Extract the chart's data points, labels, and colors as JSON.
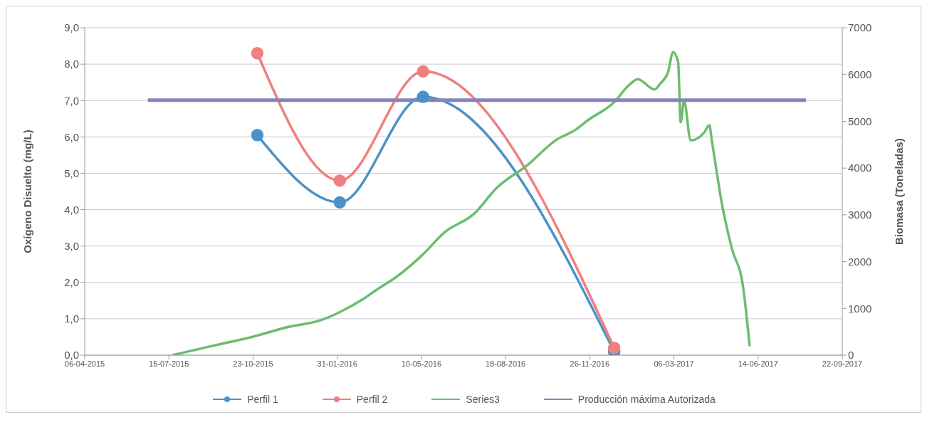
{
  "chart_data": {
    "type": "line",
    "ylabel": "Oxígeno Disuelto (mg/L)",
    "y2label": "Biomasa (Toneladas)",
    "xlim": [
      "2015-04-06",
      "2017-09-22"
    ],
    "xticks": [
      {
        "value": "2015-04-06",
        "label": "06-04-2015"
      },
      {
        "value": "2015-07-15",
        "label": "15-07-2015"
      },
      {
        "value": "2015-10-23",
        "label": "23-10-2015"
      },
      {
        "value": "2016-01-31",
        "label": "31-01-2016"
      },
      {
        "value": "2016-05-10",
        "label": "10-05-2016"
      },
      {
        "value": "2016-08-18",
        "label": "18-08-2016"
      },
      {
        "value": "2016-11-26",
        "label": "26-11-2016"
      },
      {
        "value": "2017-03-06",
        "label": "06-03-2017"
      },
      {
        "value": "2017-06-14",
        "label": "14-06-2017"
      },
      {
        "value": "2017-09-22",
        "label": "22-09-2017"
      }
    ],
    "ylim": [
      0,
      9
    ],
    "yticks": [
      {
        "value": 0,
        "label": "0,0"
      },
      {
        "value": 1,
        "label": "1,0"
      },
      {
        "value": 2,
        "label": "2,0"
      },
      {
        "value": 3,
        "label": "3,0"
      },
      {
        "value": 4,
        "label": "4,0"
      },
      {
        "value": 5,
        "label": "5,0"
      },
      {
        "value": 6,
        "label": "6,0"
      },
      {
        "value": 7,
        "label": "7,0"
      },
      {
        "value": 8,
        "label": "8,0"
      },
      {
        "value": 9,
        "label": "9,0"
      }
    ],
    "y2lim": [
      0,
      7000
    ],
    "y2ticks": [
      0,
      1000,
      2000,
      3000,
      4000,
      5000,
      6000,
      7000
    ],
    "grid": "y",
    "legend": "bottom",
    "series": [
      {
        "name": "Perfil 1",
        "color": "#4a92c9",
        "marker": "circle",
        "x": [
          "2015-10-28",
          "2016-02-03",
          "2016-05-12",
          "2016-12-25"
        ],
        "values": [
          6.05,
          4.2,
          7.1,
          0.1
        ]
      },
      {
        "name": "Perfil 2",
        "color": "#ef8080",
        "marker": "circle",
        "x": [
          "2015-10-28",
          "2016-02-03",
          "2016-05-12",
          "2016-12-25"
        ],
        "values": [
          8.3,
          4.8,
          7.8,
          0.2
        ]
      },
      {
        "name": "Series3",
        "color": "#6cbd70",
        "marker": "none",
        "axis": "y2",
        "x": [
          "2015-07-19",
          "2015-09-05",
          "2015-10-24",
          "2015-12-03",
          "2016-01-12",
          "2016-02-03",
          "2016-03-01",
          "2016-03-18",
          "2016-04-10",
          "2016-05-11",
          "2016-06-06",
          "2016-07-12",
          "2016-08-07",
          "2016-09-12",
          "2016-10-17",
          "2016-11-10",
          "2016-11-22",
          "2016-12-25",
          "2017-01-12",
          "2017-01-22",
          "2017-02-11",
          "2017-02-18",
          "2017-02-27",
          "2017-03-05",
          "2017-03-11",
          "2017-03-14",
          "2017-03-18",
          "2017-03-26",
          "2017-04-11",
          "2017-04-17",
          "2017-04-20",
          "2017-05-03",
          "2017-05-14",
          "2017-05-27",
          "2017-06-04"
        ],
        "values": [
          0,
          200,
          400,
          600,
          750,
          920,
          1190,
          1400,
          1670,
          2140,
          2620,
          3030,
          3570,
          4050,
          4600,
          4830,
          5000,
          5410,
          5780,
          5900,
          5680,
          5810,
          6050,
          6480,
          6270,
          4980,
          5440,
          4590,
          4760,
          4920,
          4590,
          3140,
          2270,
          1480,
          190
        ]
      },
      {
        "name": "Producción máxima Autorizada",
        "color": "#8585bb",
        "marker": "none",
        "axis": "y2",
        "x": [
          "2015-06-20",
          "2017-08-10"
        ],
        "values": [
          5450,
          5450
        ]
      }
    ]
  }
}
